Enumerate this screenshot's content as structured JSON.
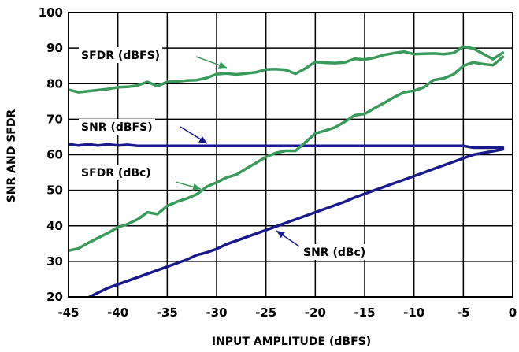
{
  "chart_data": {
    "type": "line",
    "xlabel": "INPUT AMPLITUDE (dBFS)",
    "ylabel": "SNR AND SFDR",
    "xlim": [
      -45,
      0
    ],
    "ylim": [
      20,
      100
    ],
    "x_ticks": [
      -45,
      -40,
      -35,
      -30,
      -25,
      -20,
      -15,
      -10,
      -5,
      0
    ],
    "y_ticks": [
      20,
      30,
      40,
      50,
      60,
      70,
      80,
      90,
      100
    ],
    "grid": true,
    "colors": {
      "sfdr": "#3a9a5b",
      "snr": "#1a1a8c"
    },
    "series": [
      {
        "name": "SFDR (dBFS)",
        "color": "#3a9a5b",
        "x": [
          -45,
          -44,
          -43,
          -42,
          -41,
          -40,
          -39,
          -38,
          -37,
          -36,
          -35,
          -34,
          -33,
          -32,
          -31,
          -30,
          -29,
          -28,
          -27,
          -26,
          -25,
          -24,
          -23,
          -22,
          -21,
          -20,
          -19,
          -18,
          -17,
          -16,
          -15,
          -14,
          -13,
          -12,
          -11,
          -10,
          -9,
          -8,
          -7,
          -6,
          -5,
          -4,
          -3,
          -2,
          -1
        ],
        "y": [
          78.3,
          77.6,
          77.9,
          78.2,
          78.5,
          79.0,
          79.1,
          79.5,
          80.5,
          79.3,
          80.5,
          80.6,
          80.9,
          81.0,
          81.6,
          82.7,
          82.9,
          82.6,
          82.9,
          83.2,
          84.0,
          84.1,
          83.9,
          82.8,
          84.3,
          86.1,
          85.9,
          85.8,
          86.0,
          87.0,
          86.8,
          87.3,
          88.1,
          88.6,
          89.0,
          88.3,
          88.4,
          88.5,
          88.3,
          88.6,
          90.4,
          89.9,
          88.4,
          86.9,
          88.7
        ]
      },
      {
        "name": "SNR (dBFS)",
        "color": "#1a1a8c",
        "x": [
          -45,
          -44,
          -43,
          -42,
          -41,
          -40,
          -39,
          -38,
          -37,
          -36,
          -35,
          -34,
          -33,
          -32,
          -31,
          -30,
          -29,
          -28,
          -27,
          -26,
          -25,
          -24,
          -23,
          -22,
          -21,
          -20,
          -19,
          -18,
          -17,
          -16,
          -15,
          -14,
          -13,
          -12,
          -11,
          -10,
          -9,
          -8,
          -7,
          -6,
          -5,
          -4,
          -3,
          -2,
          -1
        ],
        "y": [
          63.0,
          62.6,
          62.9,
          62.6,
          62.9,
          62.6,
          62.8,
          62.5,
          62.5,
          62.5,
          62.5,
          62.5,
          62.5,
          62.5,
          62.5,
          62.5,
          62.5,
          62.5,
          62.5,
          62.5,
          62.5,
          62.5,
          62.5,
          62.5,
          62.5,
          62.5,
          62.5,
          62.5,
          62.5,
          62.5,
          62.5,
          62.5,
          62.5,
          62.5,
          62.5,
          62.5,
          62.5,
          62.5,
          62.5,
          62.5,
          62.5,
          62.0,
          62.0,
          62.0,
          62.0
        ]
      },
      {
        "name": "SFDR (dBc)",
        "color": "#3a9a5b",
        "x": [
          -45,
          -44,
          -43,
          -42,
          -41,
          -40,
          -39,
          -38,
          -37,
          -36,
          -35,
          -34,
          -33,
          -32,
          -31,
          -30,
          -29,
          -28,
          -27,
          -26,
          -25,
          -24,
          -23,
          -22,
          -21,
          -20,
          -19,
          -18,
          -17,
          -16,
          -15,
          -14,
          -13,
          -12,
          -11,
          -10,
          -9,
          -8,
          -7,
          -6,
          -5,
          -4,
          -3,
          -2,
          -1
        ],
        "y": [
          33.0,
          33.6,
          35.2,
          36.6,
          38.0,
          39.6,
          40.5,
          41.8,
          43.8,
          43.3,
          45.6,
          46.8,
          47.7,
          48.9,
          51.0,
          52.2,
          53.6,
          54.4,
          56.1,
          57.7,
          59.4,
          60.5,
          61.1,
          61.1,
          63.5,
          66.0,
          66.8,
          67.7,
          69.3,
          71.1,
          71.5,
          73.1,
          74.6,
          76.2,
          77.6,
          78.0,
          79.0,
          81.0,
          81.5,
          82.6,
          85.0,
          86.0,
          85.5,
          85.2,
          87.5
        ]
      },
      {
        "name": "SNR (dBc)",
        "color": "#1a1a8c",
        "x": [
          -45,
          -44,
          -43,
          -42,
          -41,
          -40,
          -39,
          -38,
          -37,
          -36,
          -35,
          -34,
          -33,
          -32,
          -31,
          -30,
          -29,
          -28,
          -27,
          -26,
          -25,
          -24,
          -23,
          -22,
          -21,
          -20,
          -19,
          -18,
          -17,
          -16,
          -15,
          -14,
          -13,
          -12,
          -11,
          -10,
          -9,
          -8,
          -7,
          -6,
          -5,
          -4,
          -3,
          -2,
          -1
        ],
        "y": [
          18.0,
          18.8,
          19.8,
          21.2,
          22.5,
          23.5,
          24.5,
          25.5,
          26.5,
          27.5,
          28.5,
          29.5,
          30.5,
          31.8,
          32.5,
          33.5,
          34.8,
          35.8,
          36.8,
          37.8,
          38.8,
          39.8,
          40.8,
          41.8,
          42.8,
          43.8,
          44.8,
          45.8,
          46.8,
          48.0,
          49.0,
          50.0,
          51.0,
          52.0,
          53.0,
          54.0,
          55.0,
          56.0,
          57.0,
          58.0,
          59.0,
          60.0,
          60.5,
          61.0,
          61.5
        ]
      }
    ],
    "annotations": [
      {
        "text": "SFDR (dBFS)",
        "points_to_x": -29
      },
      {
        "text": "SNR (dBFS)",
        "points_to_x": -30
      },
      {
        "text": "SFDR (dBc)",
        "points_to_x": -31
      },
      {
        "text": "SNR (dBc)",
        "points_to_x": -25
      }
    ]
  }
}
